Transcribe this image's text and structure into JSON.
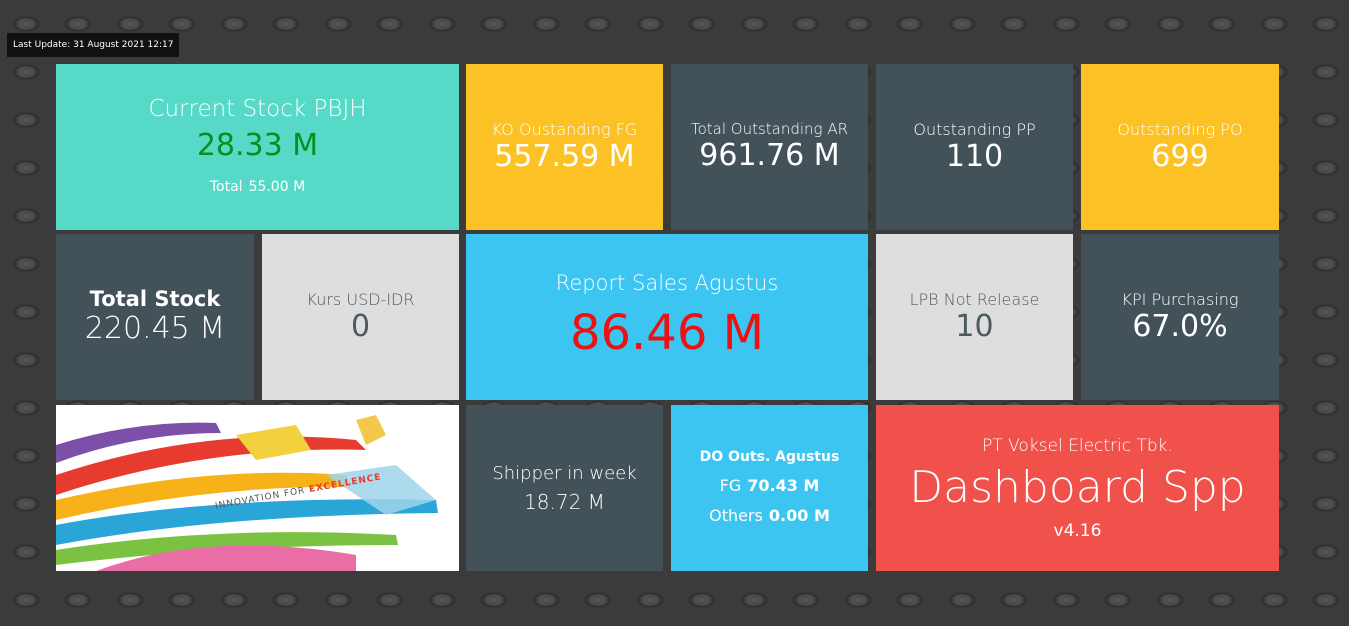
{
  "last_update": "Last Update: 31 August 2021 12:17",
  "current_stock": {
    "label": "Current Stock PBJH",
    "value": "28.33 M",
    "total_label": "Total",
    "total_value": "55.00 M"
  },
  "ko_outstanding": {
    "label": "KO Oustanding FG",
    "value": "557.59 M"
  },
  "outstanding_ar": {
    "label": "Total Outstanding AR",
    "value": "961.76 M"
  },
  "outstanding_pp": {
    "label": "Outstanding PP",
    "value": "110"
  },
  "outstanding_po": {
    "label": "Outstanding PO",
    "value": "699"
  },
  "total_stock": {
    "label": "Total Stock",
    "value": "220.45 M"
  },
  "kurs": {
    "label": "Kurs USD-IDR",
    "value": "0"
  },
  "report_sales": {
    "label": "Report Sales Agustus",
    "value": "86.46 M"
  },
  "lpb": {
    "label": "LPB Not Release",
    "value": "10"
  },
  "kpi": {
    "label": "KPI Purchasing",
    "value": "67.0%"
  },
  "banner": {
    "text_1": "INNOVATION FOR",
    "text_2": "EXCELLENCE"
  },
  "shipper": {
    "label": "Shipper in week",
    "value": "18.72 M"
  },
  "do_outs": {
    "label": "DO Outs. Agustus",
    "fg_label": "FG",
    "fg_value": "70.43 M",
    "others_label": "Others",
    "others_value": "0.00 M"
  },
  "brand": {
    "company": "PT Voksel Electric Tbk.",
    "title": "Dashboard Spp",
    "version": "v4.16"
  }
}
